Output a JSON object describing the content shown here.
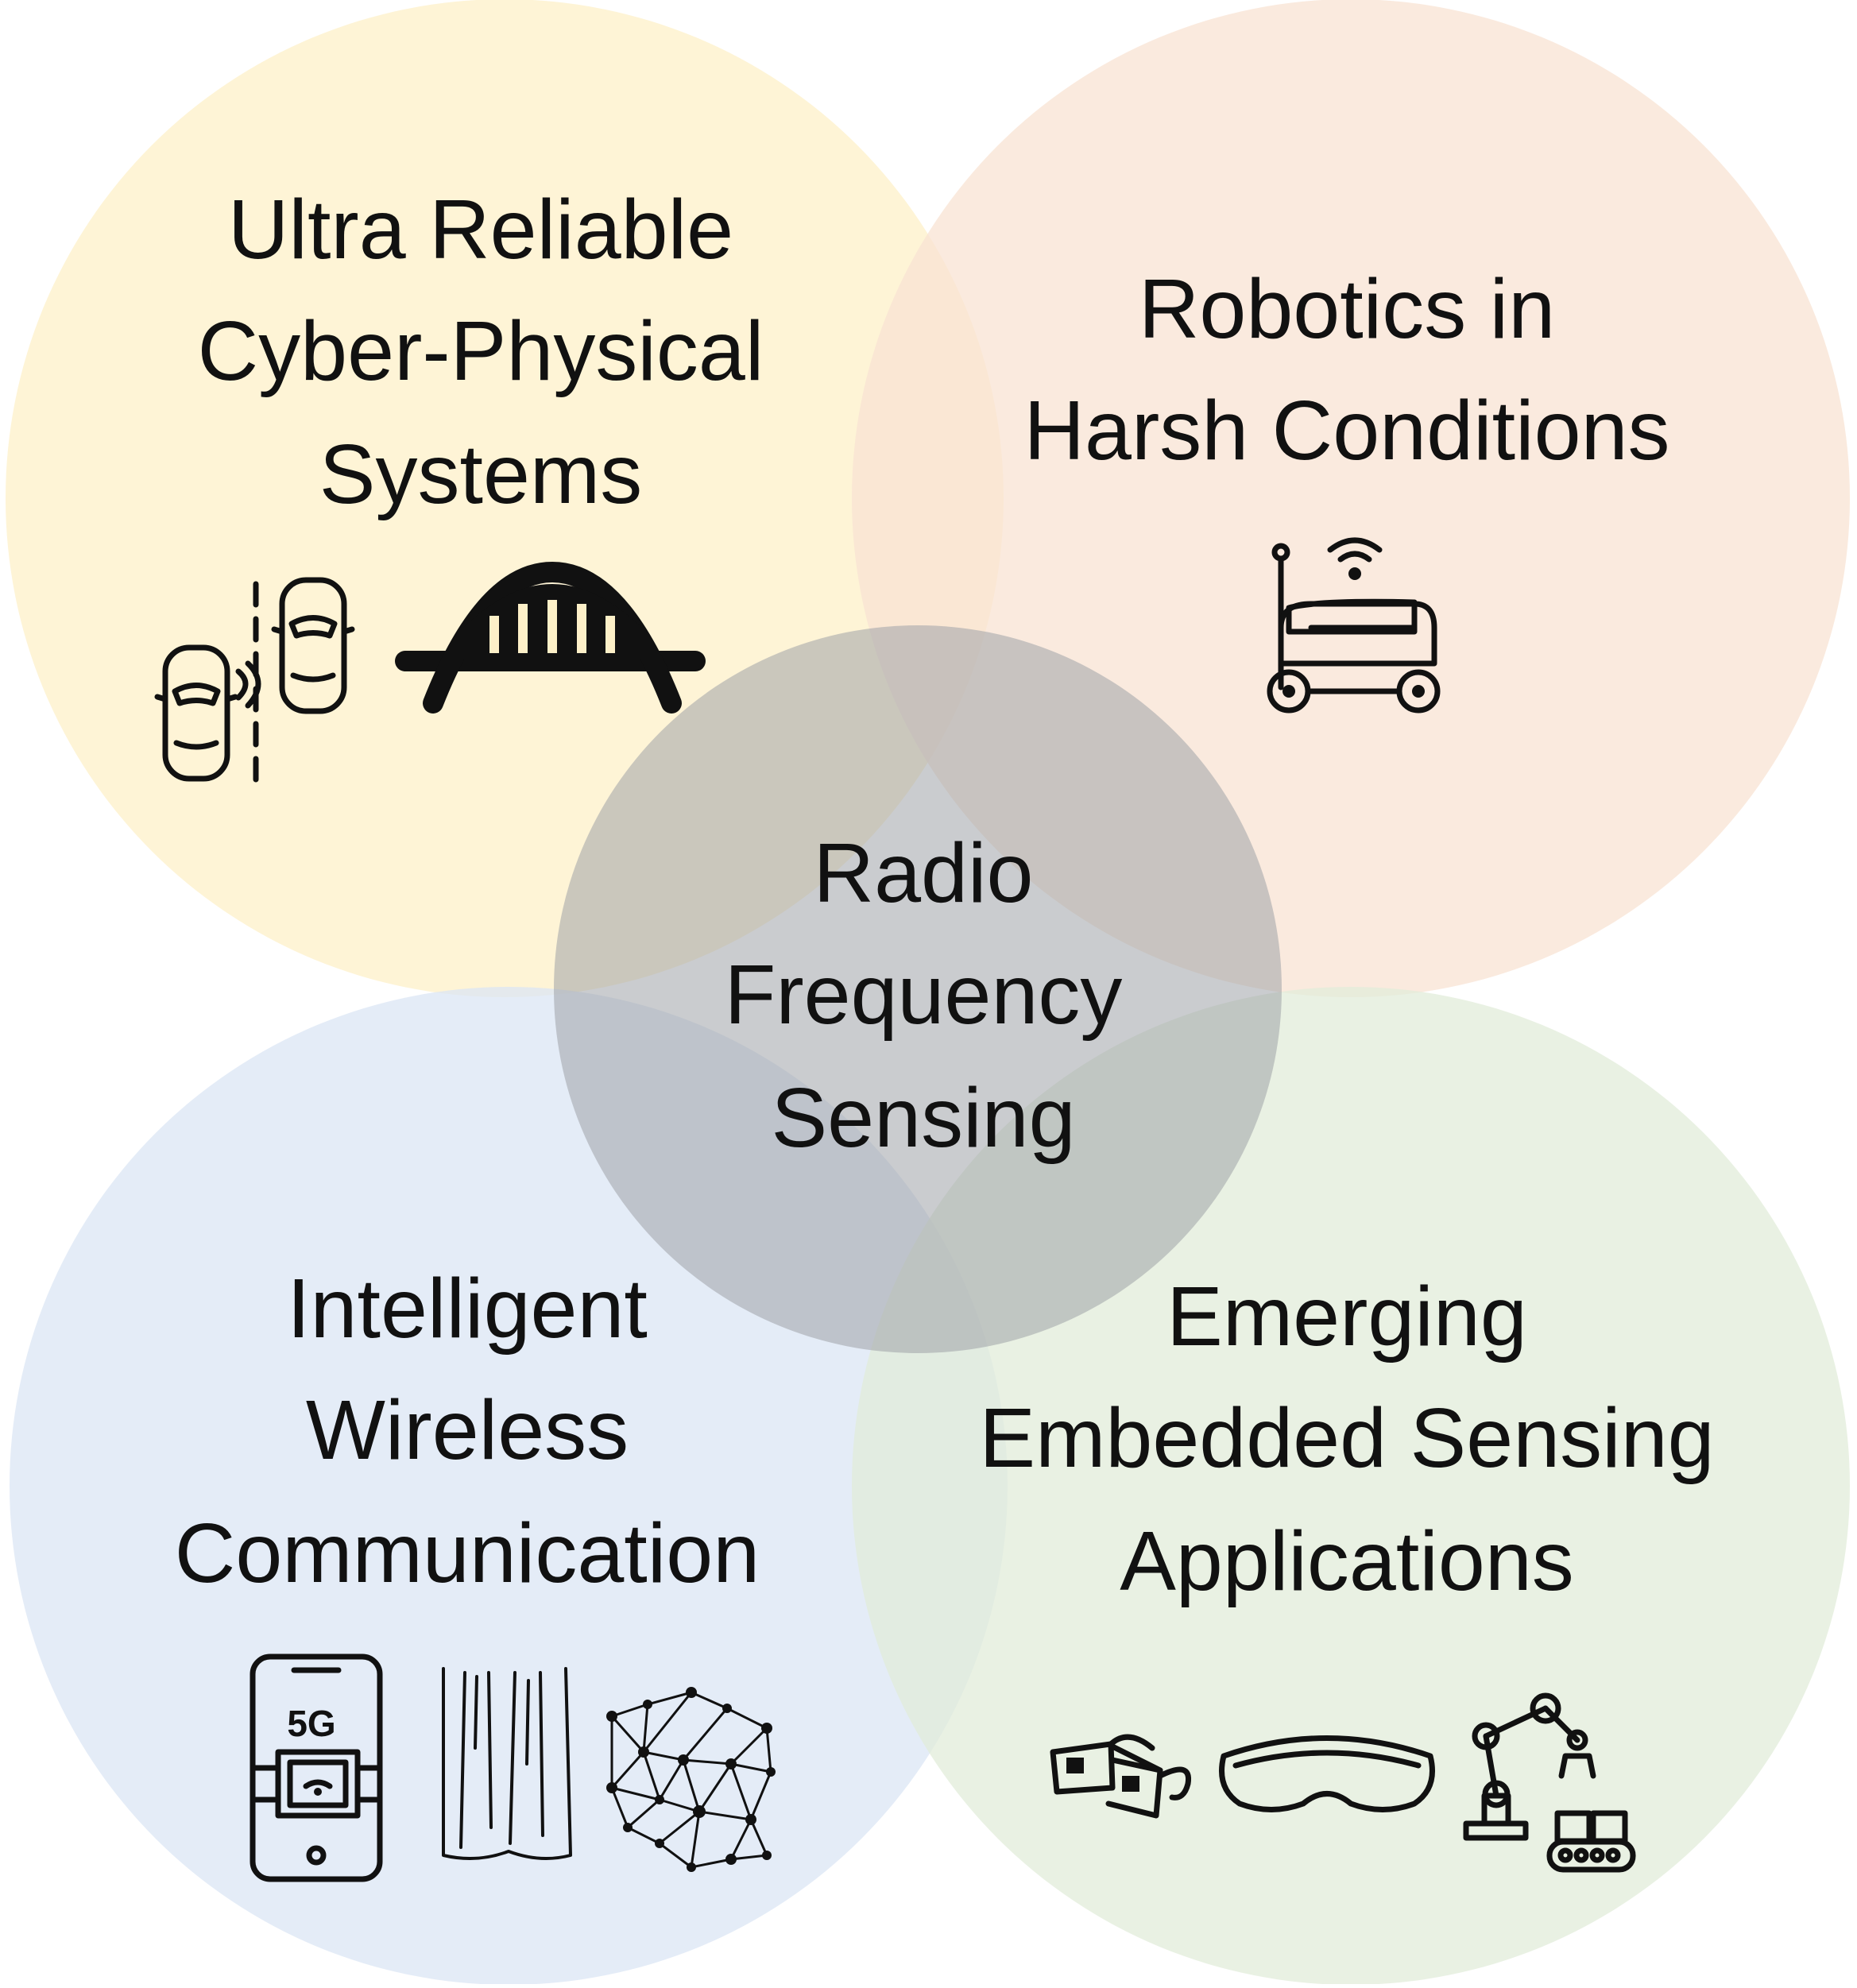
{
  "center": {
    "lines": [
      "Radio",
      "Frequency",
      "Sensing"
    ],
    "color": "#9fa3a8"
  },
  "circles": {
    "top_left": {
      "lines": [
        "Ultra Reliable",
        "Cyber-Physical",
        "Systems"
      ],
      "color": "#fdf0c8",
      "icons": [
        "cars-lane-change-icon",
        "bridge-icon"
      ]
    },
    "top_right": {
      "lines": [
        "Robotics in",
        "Harsh Conditions"
      ],
      "color": "#f8e3d3",
      "icons": [
        "wireless-robot-icon"
      ]
    },
    "bottom_left": {
      "lines": [
        "Intelligent",
        "Wireless",
        "Communication"
      ],
      "color": "#dbe5f4",
      "icons": [
        "5g-smartphone-icon",
        "curtain-icon",
        "network-mesh-icon"
      ],
      "icon_text": "5G"
    },
    "bottom_right": {
      "lines": [
        "Emerging",
        "Embedded Sensing",
        "Applications"
      ],
      "color": "#e2ecd9",
      "icons": [
        "3d-glasses-icon",
        "vr-headset-icon",
        "robotic-arm-icon"
      ]
    }
  }
}
